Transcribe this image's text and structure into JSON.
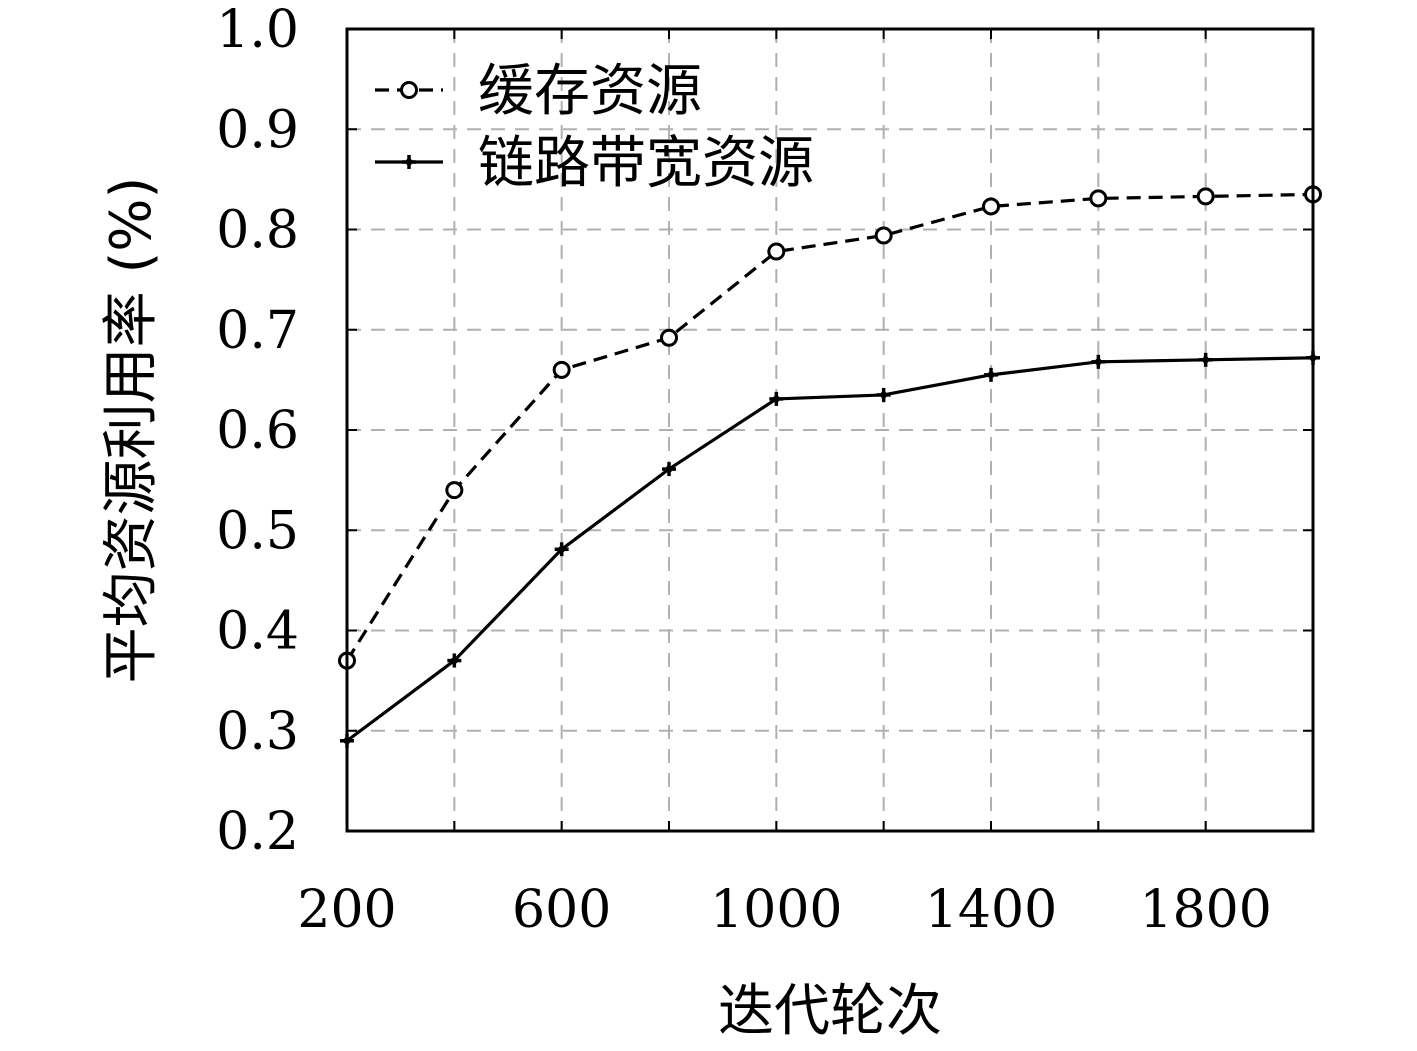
{
  "chart_data": {
    "type": "line",
    "xlabel": "迭代轮次",
    "ylabel": "平均资源利用率 (%)",
    "x": [
      200,
      400,
      600,
      800,
      1000,
      1200,
      1400,
      1600,
      1800,
      2000
    ],
    "xlim": [
      200,
      2000
    ],
    "ylim": [
      0.2,
      1.0
    ],
    "x_ticks": [
      200,
      400,
      600,
      800,
      1000,
      1200,
      1400,
      1600,
      1800,
      2000
    ],
    "x_tick_labels": [
      "200",
      "",
      "600",
      "",
      "1000",
      "",
      "1400",
      "",
      "1800",
      ""
    ],
    "y_ticks": [
      0.2,
      0.3,
      0.4,
      0.5,
      0.6,
      0.7,
      0.8,
      0.9,
      1.0
    ],
    "y_tick_labels": [
      "0.2",
      "0.3",
      "0.4",
      "0.5",
      "0.6",
      "0.7",
      "0.8",
      "0.9",
      "1.0"
    ],
    "grid": true,
    "legend_position": "top-left",
    "series": [
      {
        "name": "缓存资源",
        "style": "dashed",
        "marker": "circle",
        "color": "#000000",
        "values": [
          0.37,
          0.54,
          0.66,
          0.692,
          0.778,
          0.794,
          0.823,
          0.831,
          0.833,
          0.835
        ]
      },
      {
        "name": "链路带宽资源",
        "style": "solid",
        "marker": "plus",
        "color": "#000000",
        "values": [
          0.29,
          0.37,
          0.481,
          0.561,
          0.631,
          0.635,
          0.655,
          0.668,
          0.67,
          0.672
        ]
      }
    ]
  }
}
